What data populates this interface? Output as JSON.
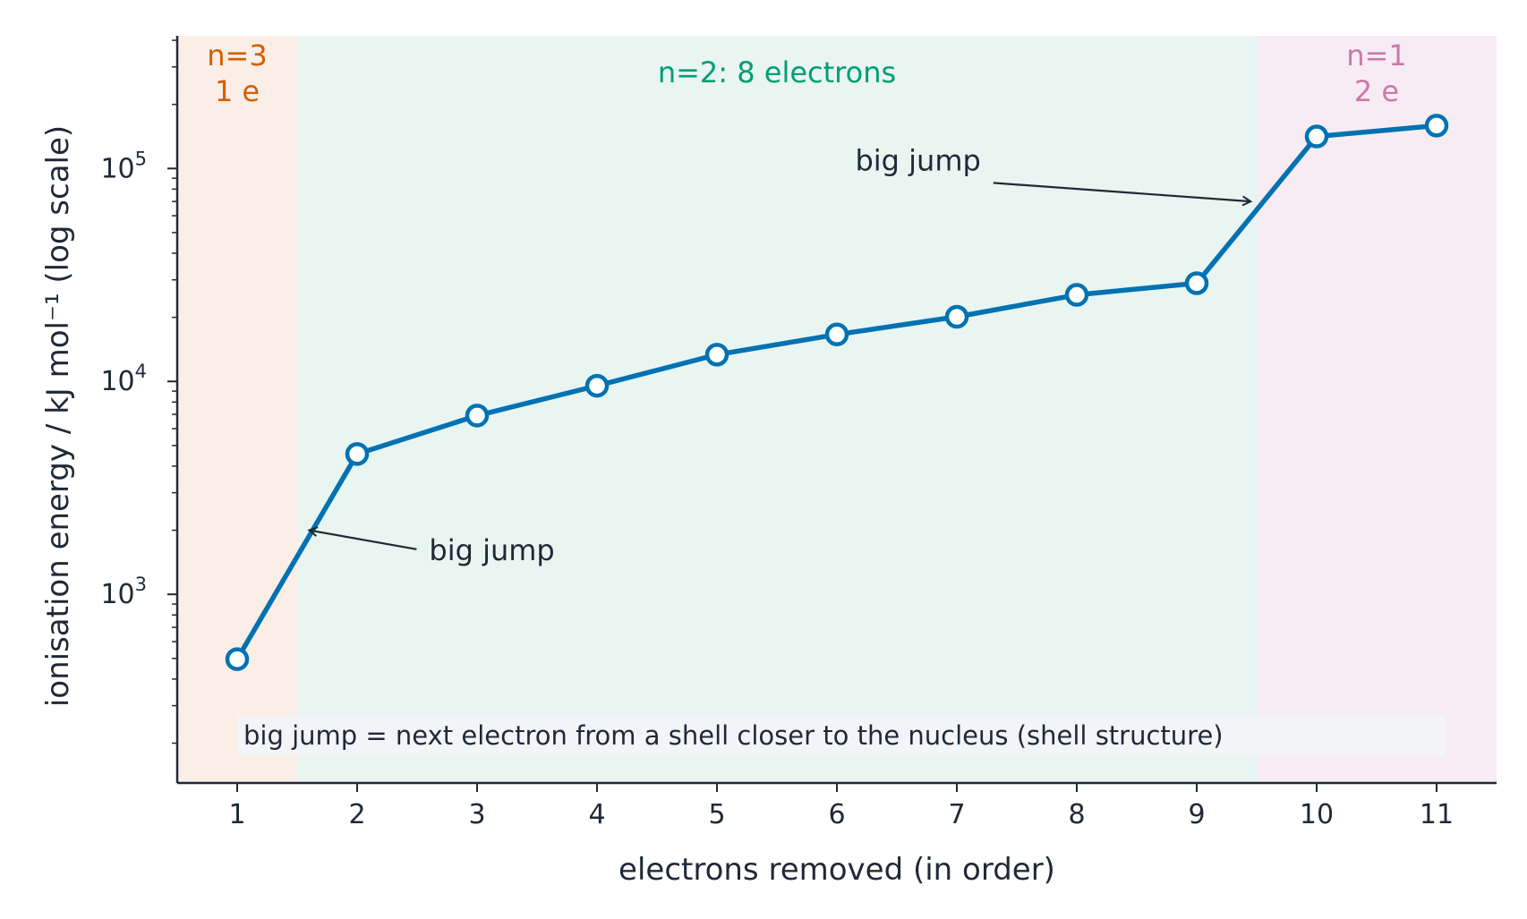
{
  "chart_data": {
    "type": "line",
    "xlabel": "electrons removed (in order)",
    "ylabel": "ionisation energy / kJ mol⁻¹  (log scale)",
    "y_scale": "log",
    "xlim": [
      0.5,
      11.5
    ],
    "ylim": [
      130,
      420000
    ],
    "x_ticks": [
      1,
      2,
      3,
      4,
      5,
      6,
      7,
      8,
      9,
      10,
      11
    ],
    "y_ticks": [
      {
        "value": 1000,
        "base": "10",
        "exp": "3"
      },
      {
        "value": 10000,
        "base": "10",
        "exp": "4"
      },
      {
        "value": 100000,
        "base": "10",
        "exp": "5"
      }
    ],
    "grid": false,
    "series": [
      {
        "color": "#0072b2",
        "x": [
          1,
          2,
          3,
          4,
          5,
          6,
          7,
          8,
          9,
          10,
          11
        ],
        "y": [
          496,
          4562,
          6910,
          9543,
          13354,
          16613,
          20117,
          25496,
          28932,
          141362,
          159076
        ]
      }
    ],
    "shell_bands": [
      {
        "x_from": 0.5,
        "x_to": 1.5,
        "lines": [
          "n=3",
          "1 e"
        ],
        "fill": "#fbeee6",
        "text_color": "#d55e00"
      },
      {
        "x_from": 1.5,
        "x_to": 9.5,
        "lines": [
          "n=2: 8 electrons"
        ],
        "fill": "#e8f5f1",
        "text_color": "#009e73"
      },
      {
        "x_from": 9.5,
        "x_to": 11.5,
        "lines": [
          "n=1",
          "2 e"
        ],
        "fill": "#f7ecf3",
        "text_color": "#cc79a7"
      }
    ],
    "annotations": [
      {
        "text": "big jump",
        "arrow_to": [
          1.6,
          2000
        ],
        "text_at": [
          2.6,
          1450
        ]
      },
      {
        "text": "big jump",
        "arrow_to": [
          9.45,
          70000
        ],
        "text_at": [
          7.2,
          98000
        ]
      }
    ],
    "footnote": "big jump = next electron from a shell closer to the nucleus (shell structure)"
  },
  "colors": {
    "axis": "#1f2937",
    "text": "#1f2937",
    "marker_fill": "#ffffff",
    "footnote_bg": "#f3f4f8"
  }
}
